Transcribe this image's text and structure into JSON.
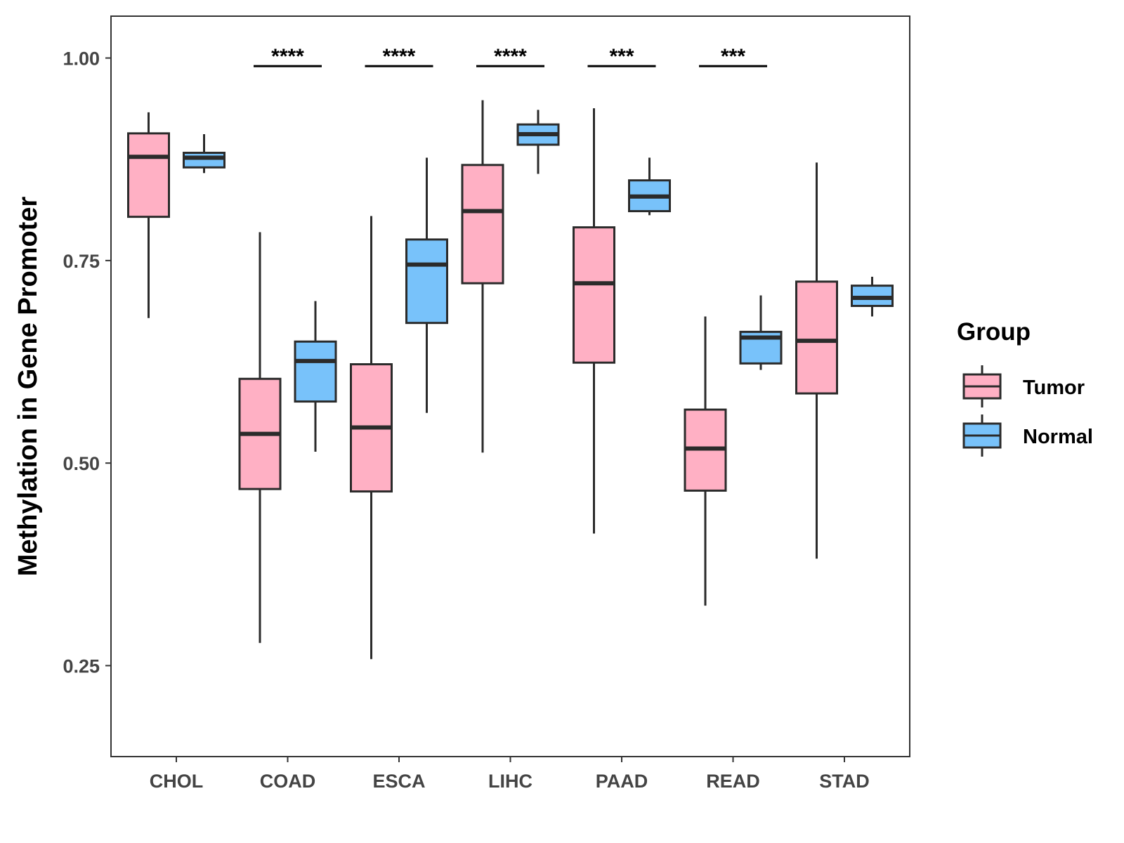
{
  "chart_data": {
    "type": "boxplot",
    "ylabel": "Methylation in Gene Promoter",
    "xlabel": "",
    "ylim": [
      0.137,
      1.05
    ],
    "yticks": [
      0.25,
      0.5,
      0.75,
      1.0
    ],
    "ytick_labels": [
      "0.25",
      "0.50",
      "0.75",
      "1.00"
    ],
    "categories": [
      "CHOL",
      "COAD",
      "ESCA",
      "LIHC",
      "PAAD",
      "READ",
      "STAD"
    ],
    "legend": {
      "title": "Group",
      "position": "right",
      "entries": [
        {
          "name": "Tumor",
          "color": "#FFB0C4"
        },
        {
          "name": "Normal",
          "color": "#78C2FA"
        }
      ]
    },
    "series": [
      {
        "name": "Tumor",
        "color": "#FFB0C4",
        "boxes": [
          {
            "category": "CHOL",
            "whisker_low": 0.679,
            "q1": 0.804,
            "median": 0.878,
            "q3": 0.907,
            "whisker_high": 0.933
          },
          {
            "category": "COAD",
            "whisker_low": 0.278,
            "q1": 0.468,
            "median": 0.536,
            "q3": 0.604,
            "whisker_high": 0.785
          },
          {
            "category": "ESCA",
            "whisker_low": 0.258,
            "q1": 0.465,
            "median": 0.544,
            "q3": 0.622,
            "whisker_high": 0.805
          },
          {
            "category": "LIHC",
            "whisker_low": 0.513,
            "q1": 0.722,
            "median": 0.811,
            "q3": 0.868,
            "whisker_high": 0.948
          },
          {
            "category": "PAAD",
            "whisker_low": 0.413,
            "q1": 0.624,
            "median": 0.722,
            "q3": 0.791,
            "whisker_high": 0.938
          },
          {
            "category": "READ",
            "whisker_low": 0.324,
            "q1": 0.466,
            "median": 0.518,
            "q3": 0.566,
            "whisker_high": 0.681
          },
          {
            "category": "STAD",
            "whisker_low": 0.382,
            "q1": 0.586,
            "median": 0.651,
            "q3": 0.724,
            "whisker_high": 0.871
          }
        ]
      },
      {
        "name": "Normal",
        "color": "#78C2FA",
        "boxes": [
          {
            "category": "CHOL",
            "whisker_low": 0.858,
            "q1": 0.865,
            "median": 0.877,
            "q3": 0.883,
            "whisker_high": 0.906
          },
          {
            "category": "COAD",
            "whisker_low": 0.514,
            "q1": 0.576,
            "median": 0.626,
            "q3": 0.65,
            "whisker_high": 0.7
          },
          {
            "category": "ESCA",
            "whisker_low": 0.562,
            "q1": 0.673,
            "median": 0.745,
            "q3": 0.776,
            "whisker_high": 0.877
          },
          {
            "category": "LIHC",
            "whisker_low": 0.857,
            "q1": 0.893,
            "median": 0.906,
            "q3": 0.918,
            "whisker_high": 0.936
          },
          {
            "category": "PAAD",
            "whisker_low": 0.806,
            "q1": 0.811,
            "median": 0.829,
            "q3": 0.849,
            "whisker_high": 0.877
          },
          {
            "category": "READ",
            "whisker_low": 0.615,
            "q1": 0.623,
            "median": 0.655,
            "q3": 0.662,
            "whisker_high": 0.707
          },
          {
            "category": "STAD",
            "whisker_low": 0.681,
            "q1": 0.694,
            "median": 0.704,
            "q3": 0.719,
            "whisker_high": 0.73
          }
        ]
      }
    ],
    "significance": [
      {
        "category": "COAD",
        "label": "****",
        "y": 0.99
      },
      {
        "category": "ESCA",
        "label": "****",
        "y": 0.99
      },
      {
        "category": "LIHC",
        "label": "****",
        "y": 0.99
      },
      {
        "category": "PAAD",
        "label": "***",
        "y": 0.99
      },
      {
        "category": "READ",
        "label": "***",
        "y": 0.99
      }
    ]
  }
}
